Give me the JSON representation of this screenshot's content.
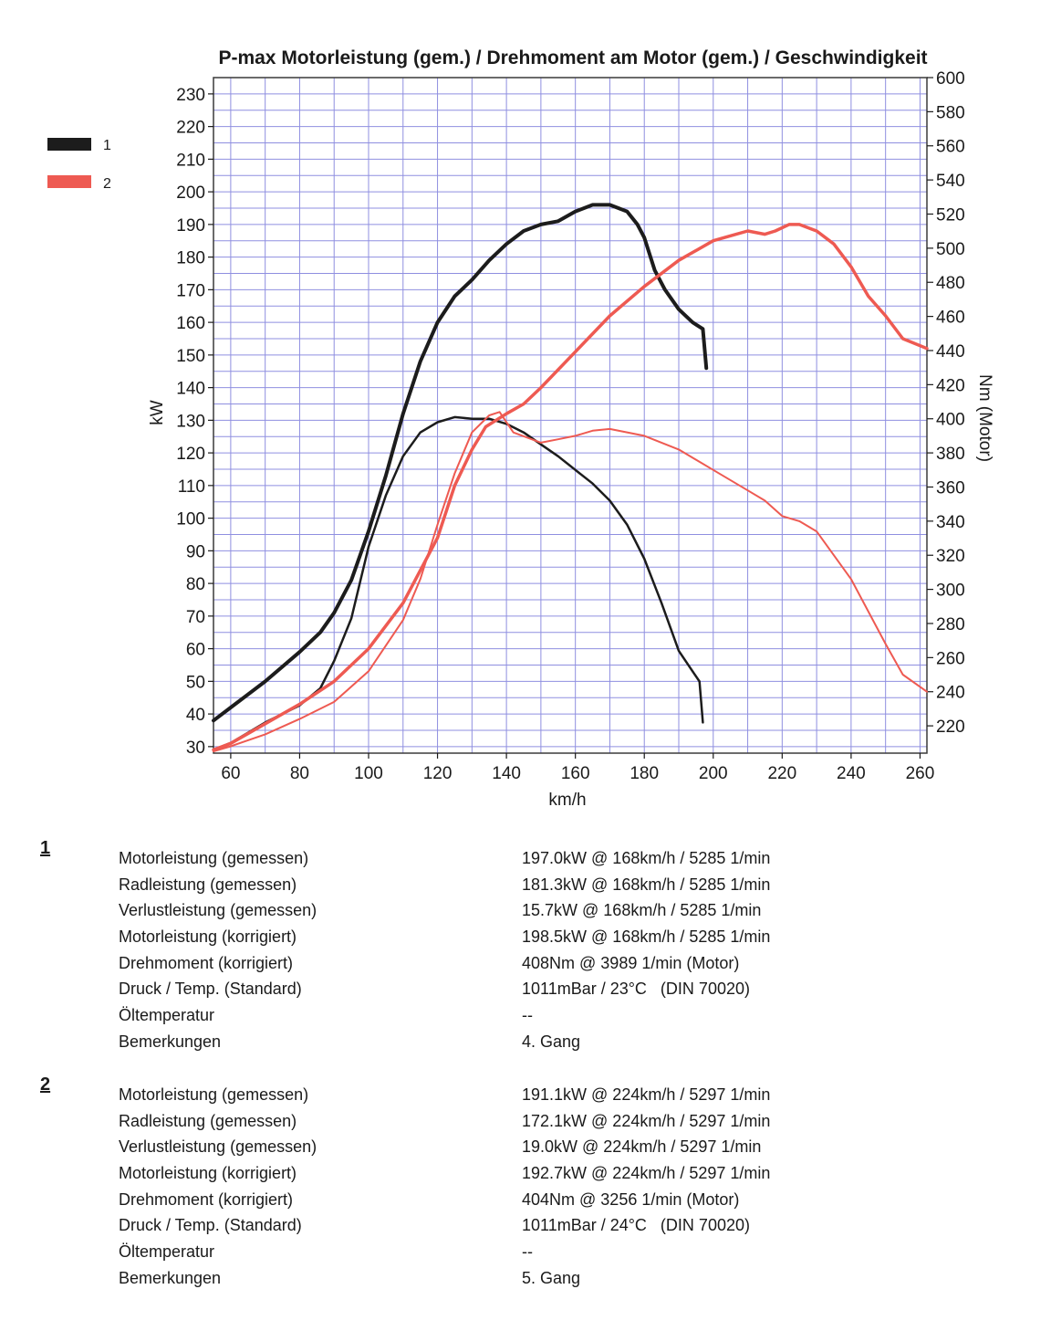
{
  "chart_data": {
    "type": "line",
    "title": "P-max Motorleistung (gem.) / Drehmoment am Motor (gem.) / Geschwindigkeit",
    "xlabel": "km/h",
    "ylabel": "kW",
    "y2label": "Nm (Motor)",
    "xlim": [
      55,
      262
    ],
    "ylim": [
      28,
      235
    ],
    "y2lim": [
      204,
      600
    ],
    "x_ticks": [
      60,
      80,
      100,
      120,
      140,
      160,
      180,
      200,
      220,
      240,
      260
    ],
    "y_ticks": [
      30,
      40,
      50,
      60,
      70,
      80,
      90,
      100,
      110,
      120,
      130,
      140,
      150,
      160,
      170,
      180,
      190,
      200,
      210,
      220,
      230
    ],
    "y2_ticks": [
      220,
      240,
      260,
      280,
      300,
      320,
      340,
      360,
      380,
      400,
      420,
      440,
      460,
      480,
      500,
      520,
      540,
      560,
      580,
      600
    ],
    "grid": true,
    "legend": [
      {
        "label": "1",
        "color": "#1c1c1c"
      },
      {
        "label": "2",
        "color": "#ee5a52"
      }
    ],
    "series": [
      {
        "name": "1 Leistung (kW)",
        "run": "1",
        "axis": "left",
        "color": "#1c1c1c",
        "width": 4,
        "x": [
          55,
          60,
          70,
          80,
          86,
          90,
          95,
          100,
          105,
          110,
          115,
          120,
          125,
          130,
          135,
          140,
          145,
          150,
          155,
          160,
          165,
          170,
          175,
          178,
          180,
          183,
          186,
          190,
          194,
          197,
          198
        ],
        "y": [
          38,
          42,
          50,
          59,
          65,
          71,
          81,
          96,
          113,
          132,
          148,
          160,
          168,
          173,
          179,
          184,
          188,
          190,
          191,
          194,
          196,
          196,
          194,
          190,
          186,
          176,
          170,
          164,
          160,
          158,
          146
        ]
      },
      {
        "name": "1 Drehmoment (Nm)",
        "run": "1",
        "axis": "right",
        "color": "#1c1c1c",
        "width": 2.5,
        "x": [
          55,
          60,
          70,
          80,
          86,
          90,
          95,
          100,
          105,
          110,
          115,
          120,
          125,
          130,
          135,
          140,
          145,
          150,
          155,
          160,
          165,
          170,
          175,
          180,
          185,
          190,
          194,
          196,
          197
        ],
        "y": [
          206,
          210,
          222,
          232,
          242,
          258,
          283,
          325,
          355,
          378,
          392,
          398,
          401,
          400,
          400,
          397,
          392,
          385,
          378,
          370,
          362,
          352,
          338,
          318,
          292,
          264,
          252,
          246,
          222
        ]
      },
      {
        "name": "2 Leistung (kW)",
        "run": "2",
        "axis": "left",
        "color": "#ee5a52",
        "width": 3.5,
        "x": [
          55,
          60,
          70,
          80,
          90,
          100,
          110,
          120,
          125,
          130,
          134,
          140,
          145,
          150,
          160,
          170,
          180,
          190,
          200,
          210,
          215,
          218,
          222,
          225,
          230,
          235,
          240,
          245,
          250,
          255,
          262
        ],
        "y": [
          29,
          31,
          37,
          43,
          50,
          60,
          74,
          94,
          110,
          121,
          128,
          132,
          135,
          140,
          151,
          162,
          171,
          179,
          185,
          188,
          187,
          188,
          190,
          190,
          188,
          184,
          177,
          168,
          162,
          155,
          152
        ]
      },
      {
        "name": "2 Drehmoment (Nm)",
        "run": "2",
        "axis": "right",
        "color": "#ee5a52",
        "width": 2,
        "x": [
          55,
          60,
          70,
          80,
          90,
          100,
          110,
          115,
          120,
          125,
          130,
          135,
          138,
          142,
          150,
          155,
          160,
          165,
          170,
          180,
          190,
          200,
          210,
          215,
          220,
          225,
          230,
          240,
          250,
          255,
          262
        ],
        "y": [
          205,
          208,
          215,
          224,
          234,
          252,
          282,
          306,
          338,
          368,
          392,
          402,
          404,
          392,
          386,
          388,
          390,
          393,
          394,
          390,
          382,
          370,
          358,
          352,
          343,
          340,
          334,
          306,
          268,
          250,
          240
        ]
      }
    ]
  },
  "results": [
    {
      "heading": "1",
      "rows": [
        {
          "label": "Motorleistung (gemessen)",
          "value": "197.0kW @ 168km/h / 5285 1/min"
        },
        {
          "label": "Radleistung (gemessen)",
          "value": "181.3kW @ 168km/h / 5285 1/min"
        },
        {
          "label": "Verlustleistung (gemessen)",
          "value": "15.7kW @ 168km/h / 5285 1/min"
        },
        {
          "label": "Motorleistung (korrigiert)",
          "value": "198.5kW @ 168km/h / 5285 1/min"
        },
        {
          "label": "Drehmoment (korrigiert)",
          "value": "408Nm @ 3989 1/min (Motor)"
        },
        {
          "label": "Druck / Temp. (Standard)",
          "value": "1011mBar / 23°C   (DIN 70020)"
        },
        {
          "label": "Öltemperatur",
          "value": "--"
        },
        {
          "label": "Bemerkungen",
          "value": "4. Gang"
        }
      ]
    },
    {
      "heading": "2",
      "rows": [
        {
          "label": "Motorleistung (gemessen)",
          "value": "191.1kW @ 224km/h / 5297 1/min"
        },
        {
          "label": "Radleistung (gemessen)",
          "value": "172.1kW @ 224km/h / 5297 1/min"
        },
        {
          "label": "Verlustleistung (gemessen)",
          "value": "19.0kW @ 224km/h / 5297 1/min"
        },
        {
          "label": "Motorleistung (korrigiert)",
          "value": "192.7kW @ 224km/h / 5297 1/min"
        },
        {
          "label": "Drehmoment (korrigiert)",
          "value": "404Nm @ 3256 1/min (Motor)"
        },
        {
          "label": "Druck / Temp. (Standard)",
          "value": "1011mBar / 24°C   (DIN 70020)"
        },
        {
          "label": "Öltemperatur",
          "value": "--"
        },
        {
          "label": "Bemerkungen",
          "value": "5. Gang"
        }
      ]
    }
  ]
}
